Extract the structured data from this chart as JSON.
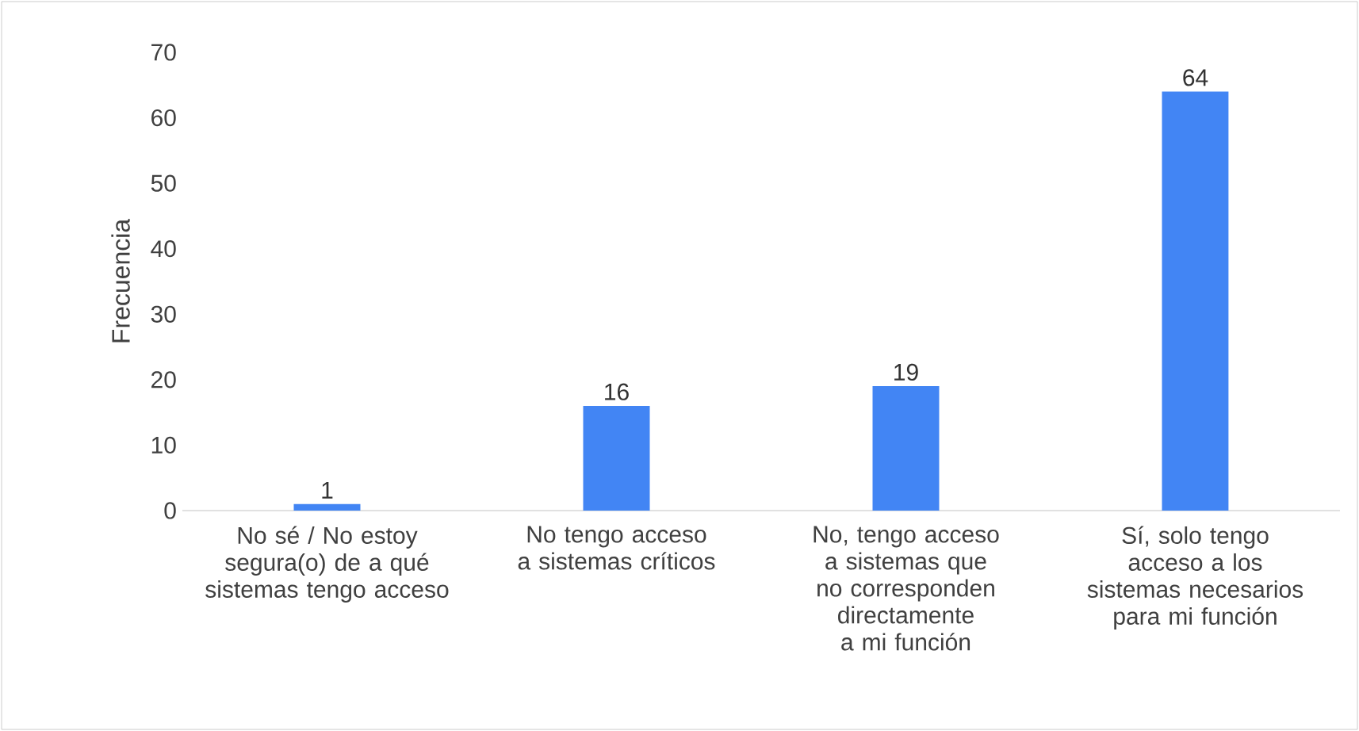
{
  "chart_data": {
    "type": "bar",
    "ylabel": "Frecuencia",
    "categories": [
      "No sé / No estoy segura(o) de a qué sistemas tengo acceso",
      "No tengo acceso a sistemas críticos",
      "No, tengo acceso a sistemas que no corresponden directamente a mi función",
      "Sí, solo tengo acceso a los sistemas necesarios para mi función"
    ],
    "values": [
      1,
      16,
      19,
      64
    ],
    "color": "#4285f4",
    "ylim": [
      0,
      70
    ],
    "yticks": [
      0,
      10,
      20,
      30,
      40,
      50,
      60,
      70
    ],
    "data_labels": true
  }
}
